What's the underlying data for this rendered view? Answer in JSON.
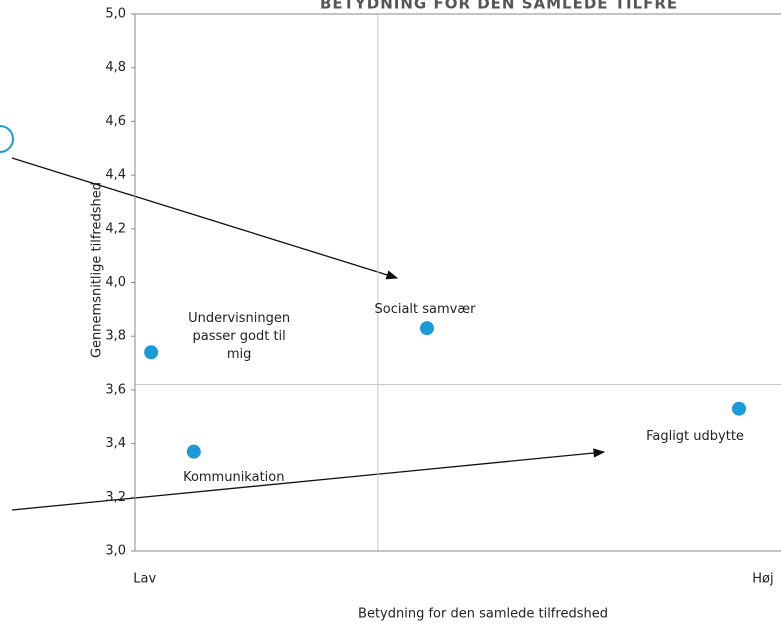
{
  "chart_data": {
    "type": "scatter",
    "title": "BETYDNING FOR DEN SAMLEDE TILFRE",
    "x_label": "Betydning for den samlede tilfredshed",
    "y_label": "Gennemsnitlige tilfredshed",
    "xlim": [
      0,
      1
    ],
    "ylim": [
      3.0,
      5.0
    ],
    "xticks": [
      {
        "value": 0.015,
        "label": "Lav"
      },
      {
        "value": 0.972,
        "label": "Høj"
      }
    ],
    "yticks": [
      {
        "value": 3.0,
        "label": "3,0"
      },
      {
        "value": 3.2,
        "label": "3,2"
      },
      {
        "value": 3.4,
        "label": "3,4"
      },
      {
        "value": 3.6,
        "label": "3,6"
      },
      {
        "value": 3.8,
        "label": "3,8"
      },
      {
        "value": 4.0,
        "label": "4,0"
      },
      {
        "value": 4.2,
        "label": "4,2"
      },
      {
        "value": 4.4,
        "label": "4,4"
      },
      {
        "value": 4.6,
        "label": "4,6"
      },
      {
        "value": 4.8,
        "label": "4,8"
      },
      {
        "value": 5.0,
        "label": "5,0"
      }
    ],
    "reference_lines": {
      "x": 0.376,
      "y": 3.62
    },
    "series": [
      {
        "color": "#1a9ad6",
        "labels": [
          "Undervisningen passer godt til mig",
          "Kommunikation",
          "Socialt samvær",
          "Fagligt udbytte"
        ],
        "x": [
          0.025,
          0.091,
          0.452,
          0.935
        ],
        "values": [
          3.74,
          3.37,
          3.83,
          3.53
        ]
      }
    ]
  }
}
